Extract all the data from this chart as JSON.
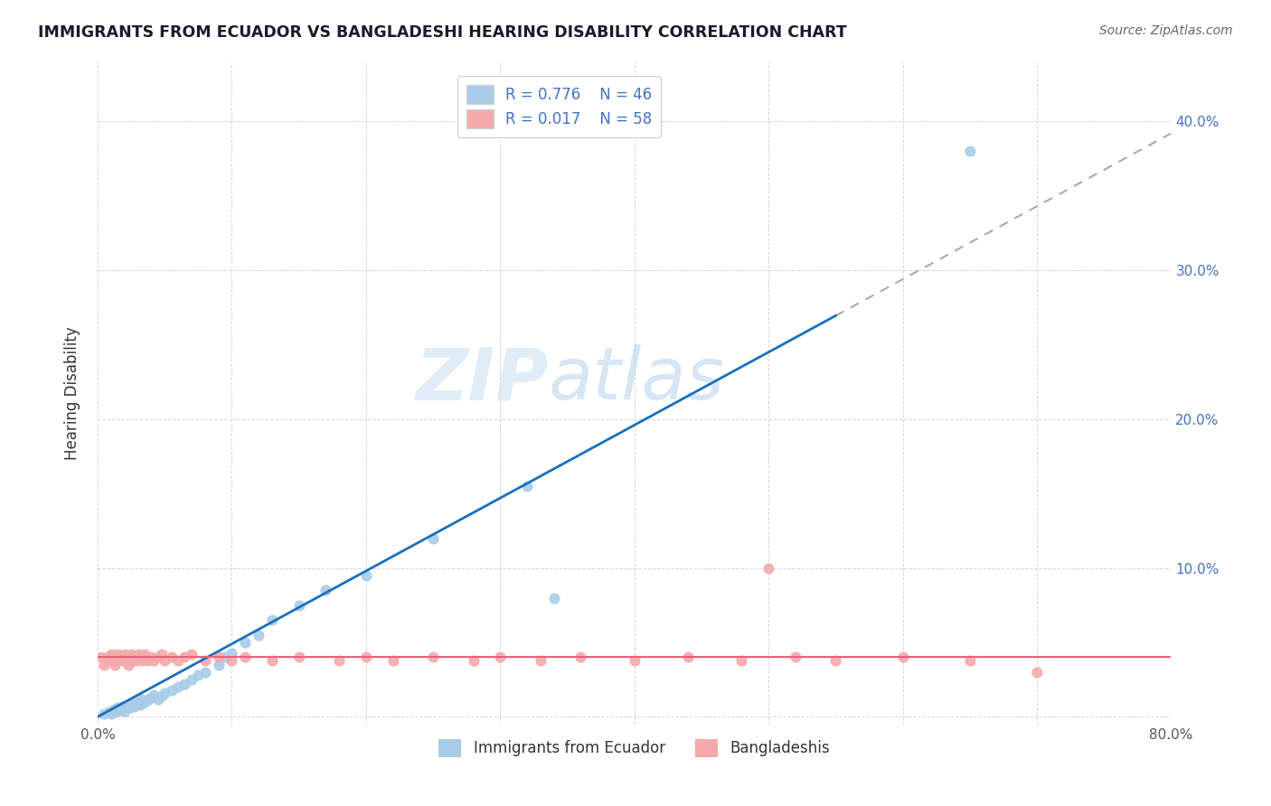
{
  "title": "IMMIGRANTS FROM ECUADOR VS BANGLADESHI HEARING DISABILITY CORRELATION CHART",
  "source": "Source: ZipAtlas.com",
  "ylabel": "Hearing Disability",
  "legend_r1": "R = 0.776",
  "legend_n1": "N = 46",
  "legend_r2": "R = 0.017",
  "legend_n2": "N = 58",
  "legend_label1": "Immigrants from Ecuador",
  "legend_label2": "Bangladeshis",
  "series1_color": "#a8cce8",
  "series2_color": "#f4aaaa",
  "trendline1_color": "#1a6fbd",
  "trendline2_color": "#e8607a",
  "trendline1_dash_color": "#aaaaaa",
  "watermark_zip": "ZIP",
  "watermark_atlas": "atlas",
  "watermark_zip_color": "#c8dff0",
  "watermark_atlas_color": "#a8c8e8",
  "xlim": [
    0.0,
    0.8
  ],
  "ylim": [
    -0.005,
    0.44
  ],
  "xtick_values": [
    0.0,
    0.1,
    0.2,
    0.3,
    0.4,
    0.5,
    0.6,
    0.7,
    0.8
  ],
  "ytick_values": [
    0.0,
    0.1,
    0.2,
    0.3,
    0.4
  ],
  "series1_x": [
    0.005,
    0.008,
    0.01,
    0.012,
    0.013,
    0.015,
    0.015,
    0.017,
    0.018,
    0.02,
    0.02,
    0.022,
    0.022,
    0.024,
    0.025,
    0.027,
    0.028,
    0.03,
    0.032,
    0.033,
    0.035,
    0.038,
    0.04,
    0.042,
    0.045,
    0.048,
    0.05,
    0.055,
    0.06,
    0.065,
    0.07,
    0.075,
    0.08,
    0.09,
    0.095,
    0.1,
    0.11,
    0.12,
    0.13,
    0.15,
    0.17,
    0.2,
    0.25,
    0.32,
    0.65,
    0.34
  ],
  "series1_y": [
    0.002,
    0.003,
    0.002,
    0.005,
    0.003,
    0.004,
    0.006,
    0.005,
    0.007,
    0.004,
    0.006,
    0.007,
    0.008,
    0.006,
    0.008,
    0.007,
    0.01,
    0.009,
    0.008,
    0.012,
    0.01,
    0.012,
    0.013,
    0.015,
    0.012,
    0.014,
    0.016,
    0.018,
    0.02,
    0.022,
    0.025,
    0.028,
    0.03,
    0.035,
    0.04,
    0.043,
    0.05,
    0.055,
    0.065,
    0.075,
    0.085,
    0.095,
    0.12,
    0.155,
    0.38,
    0.08
  ],
  "series2_x": [
    0.003,
    0.005,
    0.007,
    0.008,
    0.01,
    0.01,
    0.012,
    0.013,
    0.015,
    0.015,
    0.017,
    0.018,
    0.02,
    0.02,
    0.022,
    0.023,
    0.025,
    0.025,
    0.027,
    0.028,
    0.03,
    0.03,
    0.033,
    0.035,
    0.035,
    0.038,
    0.04,
    0.042,
    0.045,
    0.048,
    0.05,
    0.055,
    0.06,
    0.065,
    0.07,
    0.08,
    0.09,
    0.1,
    0.11,
    0.13,
    0.15,
    0.18,
    0.2,
    0.22,
    0.25,
    0.28,
    0.3,
    0.33,
    0.36,
    0.4,
    0.44,
    0.48,
    0.52,
    0.5,
    0.55,
    0.6,
    0.65,
    0.7
  ],
  "series2_y": [
    0.04,
    0.035,
    0.038,
    0.04,
    0.042,
    0.038,
    0.04,
    0.035,
    0.038,
    0.042,
    0.04,
    0.038,
    0.042,
    0.038,
    0.04,
    0.035,
    0.038,
    0.042,
    0.04,
    0.038,
    0.042,
    0.04,
    0.038,
    0.04,
    0.042,
    0.038,
    0.04,
    0.038,
    0.04,
    0.042,
    0.038,
    0.04,
    0.038,
    0.04,
    0.042,
    0.038,
    0.04,
    0.038,
    0.04,
    0.038,
    0.04,
    0.038,
    0.04,
    0.038,
    0.04,
    0.038,
    0.04,
    0.038,
    0.04,
    0.038,
    0.04,
    0.038,
    0.04,
    0.1,
    0.038,
    0.04,
    0.038,
    0.03
  ],
  "background_color": "#ffffff",
  "grid_color": "#cccccc"
}
